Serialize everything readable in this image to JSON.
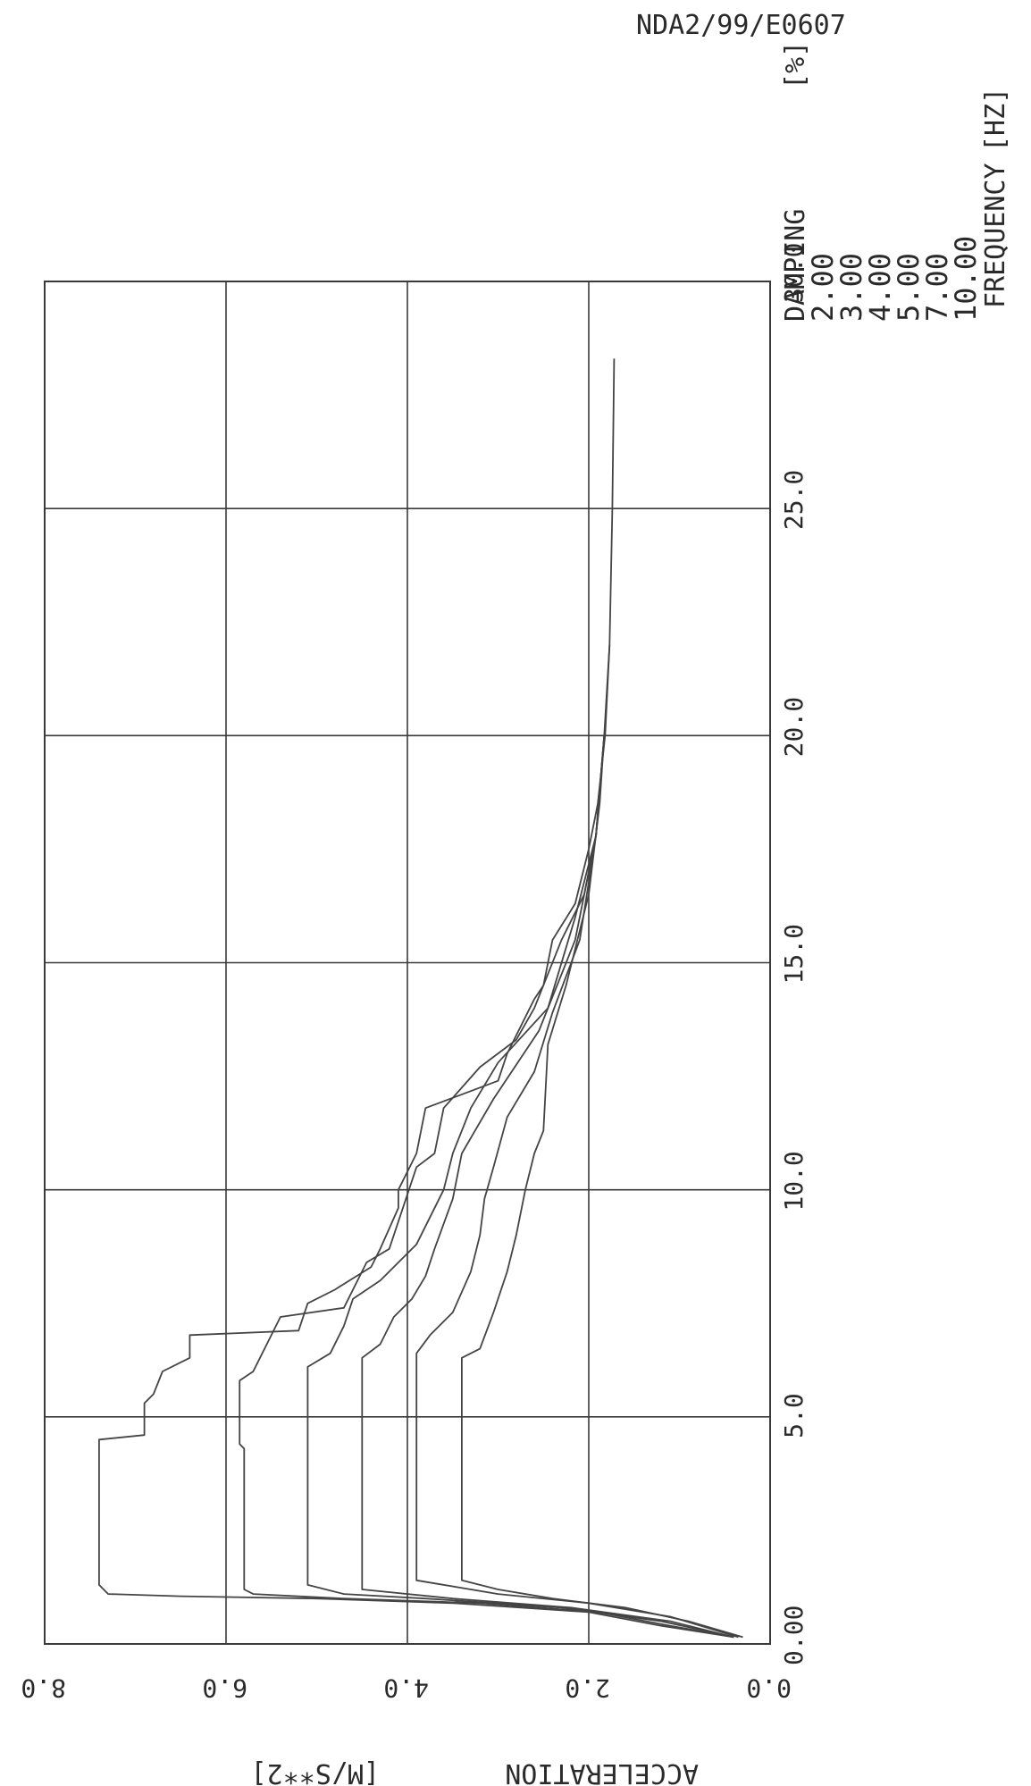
{
  "document_id": "NDA2/99/E0607",
  "chart_data": {
    "type": "line",
    "orientation": "rotated-90",
    "x_axis": {
      "label": "FREQUENCY",
      "unit": "[HZ]",
      "range": [
        0,
        30
      ],
      "ticks": [
        "0.00",
        "5.0",
        "10.0",
        "15.0",
        "20.0",
        "25.0",
        "30.0"
      ],
      "tick_values": [
        0,
        5,
        10,
        15,
        20,
        25,
        30
      ]
    },
    "y_axis": {
      "label": "ACCELERATION",
      "unit": "[M/S**2]",
      "range": [
        0,
        8
      ],
      "ticks": [
        "0.0",
        "2.0",
        "4.0",
        "6.0",
        "8.0"
      ],
      "tick_values": [
        0,
        2,
        4,
        6,
        8
      ]
    },
    "grid": true,
    "legend": {
      "title": "DAMPING",
      "unit": "[%]",
      "entries": [
        "2.00",
        "3.00",
        "4.00",
        "5.00",
        "7.00",
        "10.00"
      ]
    },
    "series": [
      {
        "name": "2.00",
        "x": [
          0.15,
          0.4,
          0.7,
          0.9,
          1.0,
          1.05,
          1.1,
          1.3,
          4.5,
          4.6,
          5.3,
          5.5,
          6.0,
          6.3,
          6.8,
          6.9,
          7.5,
          7.8,
          8.3,
          8.7,
          9.6,
          10.0,
          10.8,
          11.8,
          12.4,
          13.0,
          14.2,
          14.5,
          15.5,
          16.3,
          17.5,
          18.5,
          20.0,
          22.0,
          25.0,
          28.3
        ],
        "y": [
          0.4,
          1.2,
          2.0,
          3.5,
          5.0,
          6.5,
          7.3,
          7.4,
          7.4,
          6.9,
          6.9,
          6.8,
          6.7,
          6.4,
          6.4,
          5.2,
          5.1,
          4.8,
          4.4,
          4.3,
          4.1,
          4.1,
          3.9,
          3.8,
          3.0,
          2.9,
          2.6,
          2.5,
          2.4,
          2.15,
          2.0,
          1.9,
          1.82,
          1.77,
          1.74,
          1.72
        ]
      },
      {
        "name": "3.00",
        "x": [
          0.15,
          0.4,
          0.7,
          0.9,
          1.0,
          1.1,
          1.2,
          4.3,
          4.4,
          5.8,
          6.0,
          7.2,
          7.4,
          8.4,
          8.7,
          10.5,
          10.8,
          11.8,
          12.7,
          13.3,
          14.0,
          15.5,
          16.5,
          17.8,
          20.0,
          22.0
        ],
        "y": [
          0.4,
          1.1,
          1.9,
          3.2,
          4.7,
          5.7,
          5.8,
          5.8,
          5.85,
          5.85,
          5.7,
          5.4,
          4.7,
          4.45,
          4.2,
          3.9,
          3.7,
          3.6,
          3.2,
          2.8,
          2.6,
          2.3,
          2.05,
          1.92,
          1.83,
          1.77
        ]
      },
      {
        "name": "4.00",
        "x": [
          0.15,
          0.5,
          0.8,
          1.0,
          1.1,
          1.3,
          6.1,
          6.4,
          7.0,
          7.6,
          8.0,
          8.8,
          10.0,
          10.8,
          11.8,
          12.8,
          14.0,
          16.0,
          17.8,
          20.0
        ],
        "y": [
          0.4,
          1.2,
          2.3,
          3.8,
          4.7,
          5.1,
          5.1,
          4.85,
          4.7,
          4.6,
          4.3,
          3.9,
          3.6,
          3.5,
          3.3,
          3.0,
          2.45,
          2.15,
          1.92,
          1.83
        ]
      },
      {
        "name": "5.00",
        "x": [
          0.15,
          0.5,
          0.8,
          1.0,
          1.2,
          6.3,
          6.6,
          7.2,
          7.6,
          8.1,
          8.7,
          9.8,
          10.8,
          12.0,
          13.5,
          15.5,
          17.8,
          20.0
        ],
        "y": [
          0.4,
          1.1,
          2.2,
          3.5,
          4.5,
          4.5,
          4.3,
          4.15,
          3.95,
          3.8,
          3.7,
          3.5,
          3.4,
          3.05,
          2.55,
          2.15,
          1.92,
          1.83
        ]
      },
      {
        "name": "7.00",
        "x": [
          0.15,
          0.6,
          0.9,
          1.1,
          1.4,
          6.4,
          6.8,
          7.3,
          8.2,
          9.0,
          9.8,
          10.5,
          11.6,
          12.6,
          13.9,
          15.5,
          17.8,
          20.0
        ],
        "y": [
          0.35,
          1.1,
          2.0,
          3.0,
          3.9,
          3.9,
          3.75,
          3.5,
          3.3,
          3.2,
          3.15,
          3.05,
          2.9,
          2.6,
          2.4,
          2.1,
          1.92,
          1.83
        ]
      },
      {
        "name": "10.00",
        "x": [
          0.15,
          0.5,
          0.8,
          1.0,
          1.2,
          1.4,
          6.3,
          6.5,
          7.3,
          8.2,
          9.0,
          10.0,
          10.8,
          11.3,
          13.2,
          14.5,
          16.5,
          18.5,
          20.0
        ],
        "y": [
          0.3,
          0.9,
          1.6,
          2.4,
          3.0,
          3.4,
          3.4,
          3.2,
          3.05,
          2.9,
          2.8,
          2.7,
          2.6,
          2.5,
          2.45,
          2.25,
          2.0,
          1.88,
          1.83
        ]
      }
    ]
  }
}
